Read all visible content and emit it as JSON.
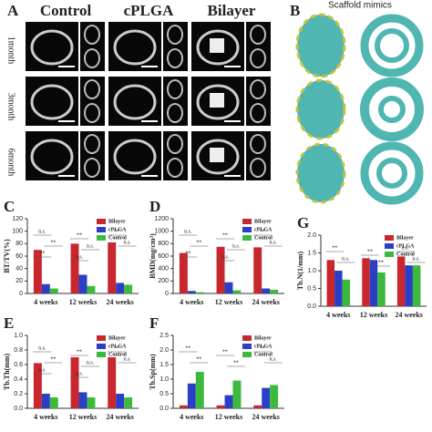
{
  "figure": {
    "panel_a": {
      "label": "A",
      "columns": [
        "Control",
        "cPLGA",
        "Bilayer"
      ],
      "rows": [
        "1month",
        "3month",
        "6month"
      ]
    },
    "panel_b": {
      "label": "B",
      "title": "Scaffold mimics"
    }
  },
  "chart_data": [
    {
      "type": "bar",
      "panel": "C",
      "y_label": "BT/TV(%)",
      "categories": [
        "4 weeks",
        "12 weeks",
        "24 weeks"
      ],
      "ylim": [
        0,
        120
      ],
      "yticks": [
        0,
        20,
        40,
        60,
        80,
        100,
        120
      ],
      "series": [
        {
          "name": "Bilayer",
          "color": "#c8272d",
          "values": [
            70,
            80,
            82
          ]
        },
        {
          "name": "cPLGA",
          "color": "#2b3fc6",
          "values": [
            15,
            30,
            17
          ]
        },
        {
          "name": "Control",
          "color": "#3dba3d",
          "values": [
            8,
            12,
            14
          ]
        }
      ],
      "annotations": [
        "n.s.",
        "**",
        "**",
        "**",
        "n.s.",
        "n.s.",
        "**",
        "n.s."
      ]
    },
    {
      "type": "bar",
      "panel": "D",
      "y_label": "BMD(mg/cm³)",
      "categories": [
        "4 weeks",
        "12 weeks",
        "24 weeks"
      ],
      "ylim": [
        0,
        1200
      ],
      "yticks": [
        0,
        200,
        400,
        600,
        800,
        1000,
        1200
      ],
      "series": [
        {
          "name": "Bilayer",
          "color": "#c8272d",
          "values": [
            650,
            750,
            740
          ]
        },
        {
          "name": "cPLGA",
          "color": "#2b3fc6",
          "values": [
            40,
            180,
            80
          ]
        },
        {
          "name": "Control",
          "color": "#3dba3d",
          "values": [
            20,
            50,
            60
          ]
        }
      ],
      "annotations": [
        "n.s.",
        "**",
        "**",
        "**",
        "n.s.",
        "n.s.",
        "**",
        "n.s."
      ]
    },
    {
      "type": "bar",
      "panel": "G",
      "y_label": "Tb.N(1/mm)",
      "categories": [
        "4 weeks",
        "12 weeks",
        "24 weeks"
      ],
      "ylim": [
        0,
        2
      ],
      "yticks": [
        {
          "value": 0,
          "label": "0.0"
        },
        0.5,
        {
          "value": 1,
          "label": "1.0"
        },
        1.5,
        {
          "value": 2,
          "label": "2.0"
        }
      ],
      "series": [
        {
          "name": "Bilayer",
          "color": "#c8272d",
          "values": [
            1.3,
            1.35,
            1.4
          ]
        },
        {
          "name": "cPLGA",
          "color": "#2b3fc6",
          "values": [
            1.0,
            1.3,
            1.15
          ]
        },
        {
          "name": "Control",
          "color": "#3dba3d",
          "values": [
            0.75,
            0.95,
            1.15
          ]
        }
      ],
      "annotations": [
        "**",
        "**",
        "n.s.",
        "n.s.",
        "**",
        "n.s."
      ]
    },
    {
      "type": "bar",
      "panel": "E",
      "y_label": "Tb.Th(mm)",
      "categories": [
        "4 weeks",
        "12 weeks",
        "24 weeks"
      ],
      "ylim": [
        0,
        1
      ],
      "yticks": [
        {
          "value": 0,
          "label": "0.0"
        },
        0.2,
        0.4,
        0.6,
        0.8,
        {
          "value": 1,
          "label": "1.0"
        }
      ],
      "series": [
        {
          "name": "Bilayer",
          "color": "#c8272d",
          "values": [
            0.62,
            0.7,
            0.7
          ]
        },
        {
          "name": "cPLGA",
          "color": "#2b3fc6",
          "values": [
            0.2,
            0.22,
            0.2
          ]
        },
        {
          "name": "Control",
          "color": "#3dba3d",
          "values": [
            0.15,
            0.15,
            0.15
          ]
        }
      ],
      "annotations": [
        "n.s.",
        "**",
        "**",
        "**",
        "n.s.",
        "n.s.",
        "n.s.",
        "n.s."
      ]
    },
    {
      "type": "bar",
      "panel": "F",
      "y_label": "Tb.Sp(mm)",
      "categories": [
        "4 weeks",
        "12 weeks",
        "24 weeks"
      ],
      "ylim": [
        0,
        2.5
      ],
      "yticks": [
        {
          "value": 0,
          "label": "0.0"
        },
        0.5,
        {
          "value": 1,
          "label": "1.0"
        },
        1.5,
        {
          "value": 2,
          "label": "2.0"
        },
        2.5
      ],
      "series": [
        {
          "name": "Bilayer",
          "color": "#c8272d",
          "values": [
            0.1,
            0.1,
            0.1
          ]
        },
        {
          "name": "cPLGA",
          "color": "#2b3fc6",
          "values": [
            0.85,
            0.45,
            0.7
          ]
        },
        {
          "name": "Control",
          "color": "#3dba3d",
          "values": [
            1.25,
            0.95,
            0.8
          ]
        }
      ],
      "annotations": [
        "**",
        "**",
        "**",
        "**",
        "**",
        "n.s."
      ]
    }
  ]
}
